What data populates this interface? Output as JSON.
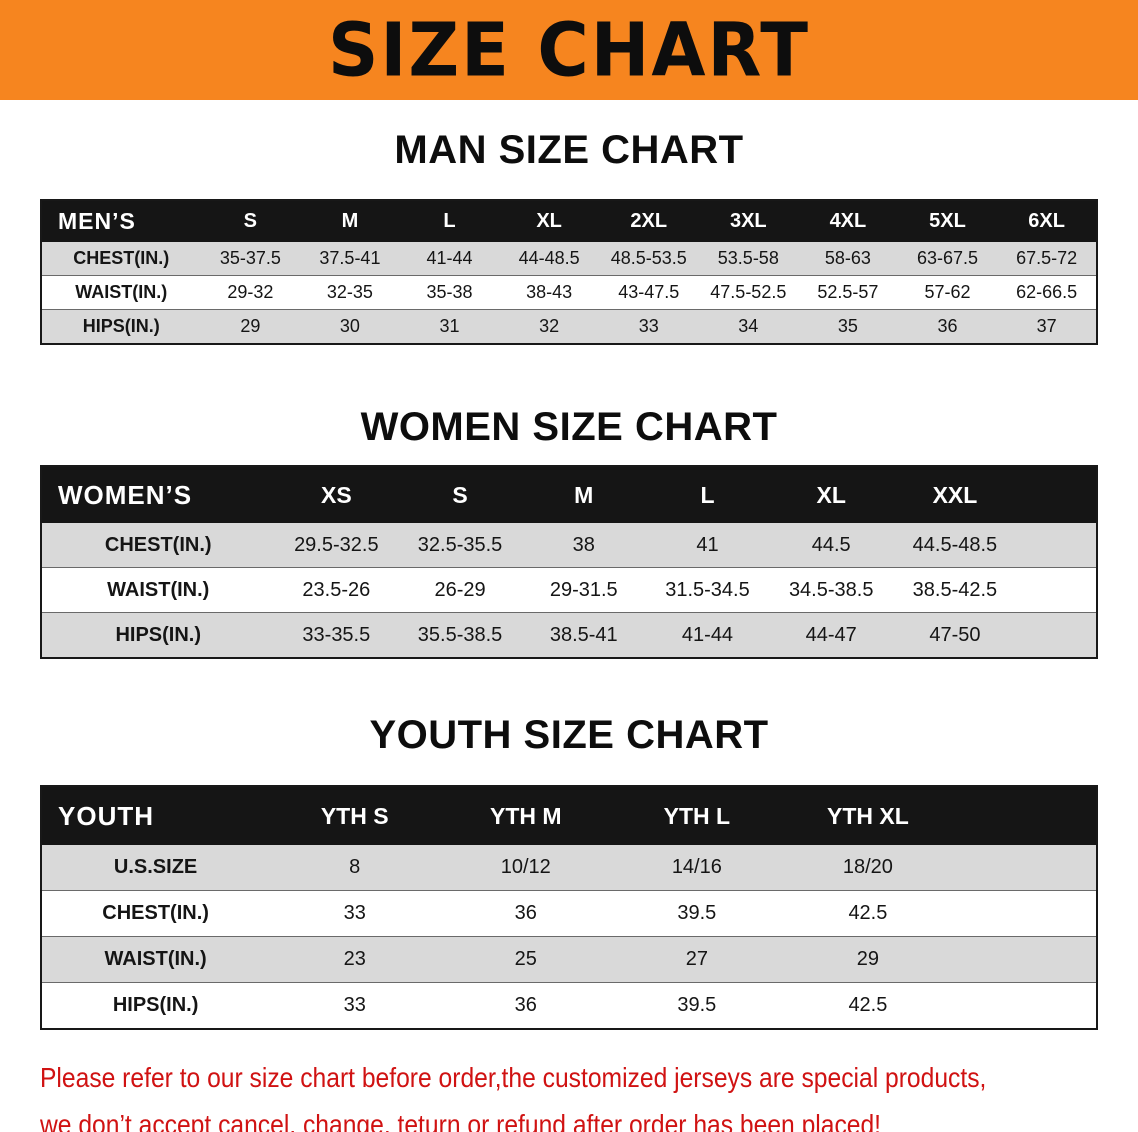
{
  "banner": {
    "title": "SIZE CHART"
  },
  "sections": [
    {
      "heading": "MAN SIZE CHART",
      "table": {
        "header": [
          "MEN’S",
          "S",
          "M",
          "L",
          "XL",
          "2XL",
          "3XL",
          "4XL",
          "5XL",
          "6XL"
        ],
        "rows": [
          [
            "CHEST(IN.)",
            "35-37.5",
            "37.5-41",
            "41-44",
            "44-48.5",
            "48.5-53.5",
            "53.5-58",
            "58-63",
            "63-67.5",
            "67.5-72"
          ],
          [
            "WAIST(IN.)",
            "29-32",
            "32-35",
            "35-38",
            "38-43",
            "43-47.5",
            "47.5-52.5",
            "52.5-57",
            "57-62",
            "62-66.5"
          ],
          [
            "HIPS(IN.)",
            "29",
            "30",
            "31",
            "32",
            "33",
            "34",
            "35",
            "36",
            "37"
          ]
        ]
      }
    },
    {
      "heading": "WOMEN SIZE CHART",
      "table": {
        "header": [
          "WOMEN’S",
          "XS",
          "S",
          "M",
          "L",
          "XL",
          "XXL"
        ],
        "rows": [
          [
            "CHEST(IN.)",
            "29.5-32.5",
            "32.5-35.5",
            "38",
            "41",
            "44.5",
            "44.5-48.5"
          ],
          [
            "WAIST(IN.)",
            "23.5-26",
            "26-29",
            "29-31.5",
            "31.5-34.5",
            "34.5-38.5",
            "38.5-42.5"
          ],
          [
            "HIPS(IN.)",
            "33-35.5",
            "35.5-38.5",
            "38.5-41",
            "41-44",
            "44-47",
            "47-50"
          ]
        ]
      }
    },
    {
      "heading": "YOUTH SIZE CHART",
      "table": {
        "header": [
          "YOUTH",
          "YTH S",
          "YTH M",
          "YTH L",
          "YTH XL"
        ],
        "rows": [
          [
            "U.S.SIZE",
            "8",
            "10/12",
            "14/16",
            "18/20"
          ],
          [
            "CHEST(IN.)",
            "33",
            "36",
            "39.5",
            "42.5"
          ],
          [
            "WAIST(IN.)",
            "23",
            "25",
            "27",
            "29"
          ],
          [
            "HIPS(IN.)",
            "33",
            "36",
            "39.5",
            "42.5"
          ]
        ]
      }
    }
  ],
  "footer_note": {
    "line1": "Please refer to our size chart before order,the customized jerseys are special products,",
    "line2": "we don’t accept cancel, change, teturn or refund after order has been placed!"
  },
  "colors": {
    "banner_orange": "#f6851f",
    "table_header_bg": "#151515",
    "row_stripe": "#d9d9d9",
    "note_red": "#d01212",
    "text_black": "#0d0d0d"
  }
}
